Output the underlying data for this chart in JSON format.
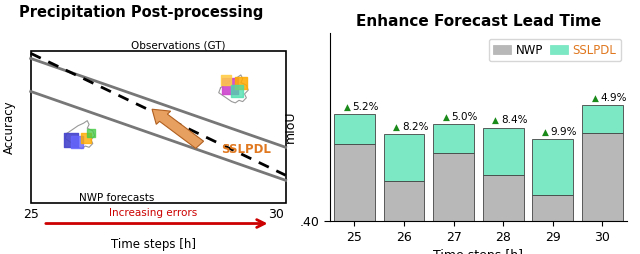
{
  "title_left": "Precipitation Post-processing",
  "title_right": "Enhance Forecast Lead Time",
  "time_steps": [
    25,
    26,
    27,
    28,
    29,
    30
  ],
  "nwp_values": [
    0.535,
    0.47,
    0.52,
    0.48,
    0.445,
    0.555
  ],
  "sslpdl_values": [
    0.052,
    0.082,
    0.05,
    0.084,
    0.099,
    0.049
  ],
  "improvements": [
    "5.2%",
    "8.2%",
    "5.0%",
    "8.4%",
    "9.9%",
    "4.9%"
  ],
  "ymin": 0.4,
  "ymax": 0.73,
  "bar_color_nwp": "#b8b8b8",
  "bar_color_sslpdl": "#7de8c4",
  "bar_edgecolor": "#444444",
  "color_sslpdl_label": "#e07820",
  "color_improvement": "#1a8a1a",
  "color_arrow_red": "#cc0000",
  "xlabel": "Time steps [h]",
  "ylabel_right": "mIoU",
  "legend_nwp": "NWP",
  "legend_sslpdl": "SSLPDL",
  "ytick_label": ".40",
  "bar_width": 0.82
}
